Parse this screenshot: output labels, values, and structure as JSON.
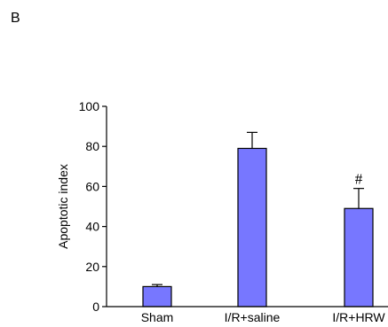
{
  "panel_label": "B",
  "chart_data": {
    "type": "bar",
    "categories": [
      "Sham",
      "I/R+saline",
      "I/R+HRW"
    ],
    "values": [
      10,
      79,
      49
    ],
    "errors": [
      1,
      8,
      10
    ],
    "annotations": [
      "",
      "",
      "#"
    ],
    "title": "",
    "xlabel": "",
    "ylabel": "Apoptotic index",
    "ylim": [
      0,
      100
    ],
    "yticks": [
      0,
      20,
      40,
      60,
      80,
      100
    ],
    "bar_color": "#7777ff",
    "grid": false,
    "legend": "none"
  }
}
